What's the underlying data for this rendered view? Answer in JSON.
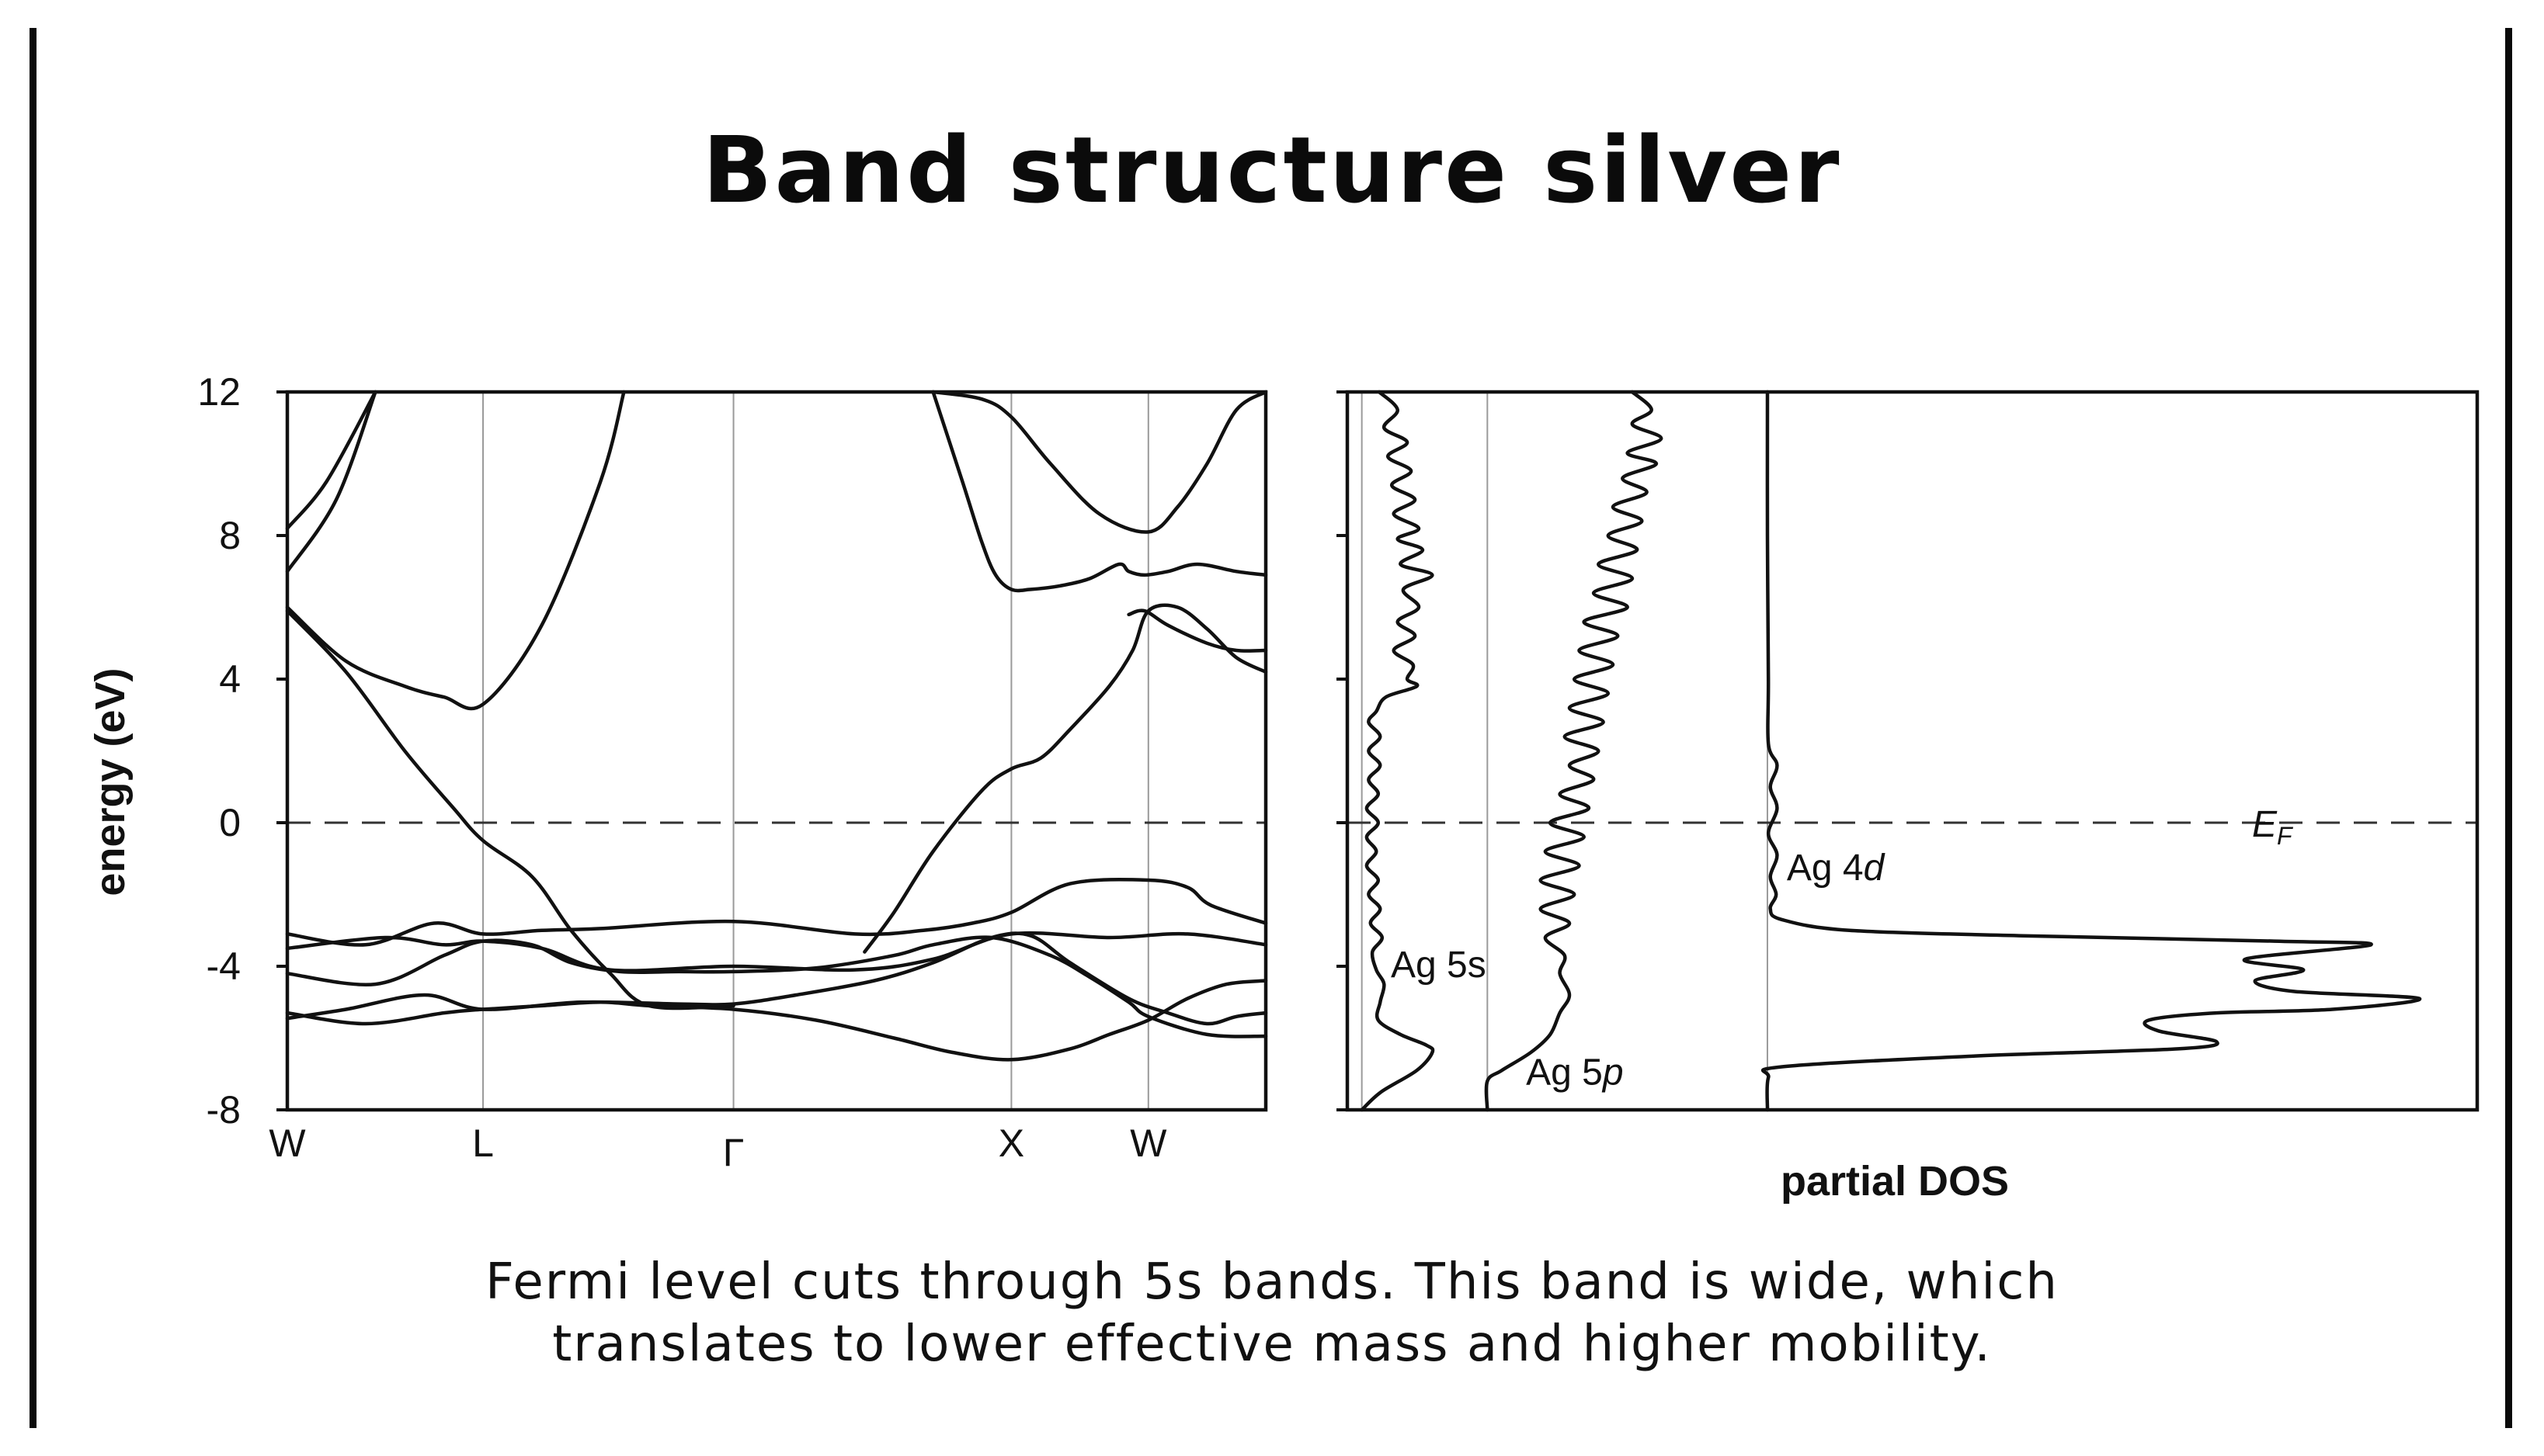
{
  "slide": {
    "title": "Band structure silver",
    "caption_line1": "Fermi level cuts through 5s bands.  This band is wide, which",
    "caption_line2": "translates to lower effective mass and higher mobility."
  },
  "chart_data": [
    {
      "type": "line",
      "ylabel": "energy (eV)",
      "ylim": [
        -8,
        12
      ],
      "yticks": [
        -8,
        -4,
        0,
        4,
        8,
        12
      ],
      "kpoints": [
        "W",
        "L",
        "Γ",
        "X",
        "W"
      ],
      "kpoint_positions": [
        0,
        1,
        2.28,
        3.7,
        4.4
      ],
      "xlim": [
        0,
        5
      ],
      "fermi_level": 0,
      "grid": "vertical lines at k-points",
      "series": [
        {
          "x": [
            0,
            0.2,
            0.45
          ],
          "values": [
            8.2,
            9.5,
            12
          ]
        },
        {
          "x": [
            0,
            0.25,
            0.45
          ],
          "values": [
            7.0,
            9.0,
            12
          ]
        },
        {
          "x": [
            0,
            0.3,
            0.6,
            0.8,
            1.0,
            1.3,
            1.6,
            1.72
          ],
          "values": [
            6.0,
            4.5,
            3.8,
            3.5,
            3.3,
            5.5,
            9.5,
            12
          ]
        },
        {
          "x": [
            0,
            0.3,
            0.6,
            0.85,
            1.0,
            1.25,
            1.45,
            1.65,
            1.85,
            2.28
          ],
          "values": [
            5.9,
            4.2,
            2.0,
            0.4,
            -0.5,
            -1.5,
            -3.0,
            -4.2,
            -5.1,
            -5.1
          ]
        },
        {
          "x": [
            0,
            0.4,
            0.75,
            1.0,
            1.3,
            1.6,
            2.28,
            2.9,
            3.25,
            3.5,
            3.7,
            4.0,
            4.4,
            4.6,
            4.72,
            5.0
          ],
          "values": [
            -3.1,
            -3.4,
            -2.8,
            -3.1,
            -3.0,
            -2.95,
            -2.75,
            -3.1,
            -3.0,
            -2.8,
            -2.5,
            -1.7,
            -1.6,
            -1.8,
            -2.3,
            -2.8
          ]
        },
        {
          "x": [
            0,
            0.5,
            0.8,
            1.0,
            1.3,
            1.65,
            2.28,
            2.9,
            3.3,
            3.7,
            4.2,
            4.6,
            5.0
          ],
          "values": [
            -3.5,
            -3.2,
            -3.4,
            -3.3,
            -3.5,
            -4.1,
            -4.0,
            -4.1,
            -3.8,
            -3.1,
            -3.2,
            -3.1,
            -3.4
          ]
        },
        {
          "x": [
            0,
            0.45,
            0.8,
            1.0,
            1.25,
            1.45,
            1.7,
            2.0,
            2.28,
            2.7,
            3.1,
            3.3,
            3.6,
            3.9,
            4.1,
            4.3,
            4.4,
            4.7,
            5.0
          ],
          "values": [
            -4.2,
            -4.5,
            -3.7,
            -3.3,
            -3.4,
            -3.9,
            -4.15,
            -4.15,
            -4.15,
            -4.05,
            -3.7,
            -3.4,
            -3.2,
            -3.7,
            -4.3,
            -5.0,
            -5.4,
            -5.9,
            -5.95
          ]
        },
        {
          "x": [
            0,
            0.4,
            0.8,
            1.0,
            1.3,
            1.6,
            1.85,
            2.28,
            2.7,
            3.1,
            3.4,
            3.7,
            4.0,
            4.2,
            4.4,
            4.6,
            4.8,
            5.0
          ],
          "values": [
            -5.3,
            -5.6,
            -5.3,
            -5.2,
            -5.1,
            -5.0,
            -5.1,
            -5.2,
            -5.5,
            -6.0,
            -6.4,
            -6.6,
            -6.3,
            -5.9,
            -5.5,
            -4.9,
            -4.5,
            -4.4
          ]
        },
        {
          "x": [
            0,
            0.3,
            0.7,
            1.0,
            1.5,
            2.0,
            2.28,
            2.6,
            3.0,
            3.3,
            3.6,
            3.8,
            4.0,
            4.3,
            4.5,
            4.7,
            4.85,
            5.0
          ],
          "values": [
            -5.45,
            -5.2,
            -4.8,
            -5.2,
            -5.0,
            -5.05,
            -5.05,
            -4.8,
            -4.4,
            -3.9,
            -3.2,
            -3.15,
            -3.9,
            -4.9,
            -5.3,
            -5.6,
            -5.4,
            -5.3
          ]
        },
        {
          "x": [
            3.3,
            3.45,
            3.55,
            3.62,
            3.7,
            3.8,
            3.95,
            4.1,
            4.25,
            4.3,
            4.38,
            4.5,
            4.65,
            4.85,
            5.0
          ],
          "values": [
            12,
            9.5,
            7.8,
            6.9,
            6.5,
            6.5,
            6.6,
            6.8,
            7.2,
            7.0,
            6.9,
            7.0,
            7.2,
            7.0,
            6.9
          ]
        },
        {
          "x": [
            3.3,
            3.55,
            3.7,
            3.9,
            4.15,
            4.4,
            4.55,
            4.7,
            4.85,
            5.0
          ],
          "values": [
            12,
            11.8,
            11.3,
            10.0,
            8.6,
            8.1,
            8.8,
            10.0,
            11.5,
            12
          ]
        },
        {
          "x": [
            2.95,
            3.1,
            3.3,
            3.55,
            3.7,
            3.85,
            4.0,
            4.2,
            4.32,
            4.4,
            4.55,
            4.7,
            4.85,
            5.0
          ],
          "values": [
            -3.6,
            -2.5,
            -0.8,
            0.9,
            1.5,
            1.8,
            2.6,
            3.8,
            4.8,
            5.9,
            6.0,
            5.4,
            4.6,
            4.2
          ]
        },
        {
          "x": [
            4.3,
            4.38,
            4.5,
            4.7,
            4.85,
            5.0
          ],
          "values": [
            5.8,
            5.9,
            5.5,
            5.0,
            4.8,
            4.8
          ]
        }
      ]
    },
    {
      "type": "line",
      "xlabel": "partial DOS",
      "ylim": [
        -8,
        12
      ],
      "fermi_label": "EF",
      "series": [
        {
          "name": "Ag 5s",
          "values": [
            [
              0.33,
              12
            ],
            [
              0.52,
              11.5
            ],
            [
              0.38,
              11.0
            ],
            [
              0.62,
              10.6
            ],
            [
              0.42,
              10.2
            ],
            [
              0.66,
              9.8
            ],
            [
              0.46,
              9.4
            ],
            [
              0.7,
              9.0
            ],
            [
              0.48,
              8.6
            ],
            [
              0.74,
              8.2
            ],
            [
              0.52,
              7.9
            ],
            [
              0.78,
              7.6
            ],
            [
              0.55,
              7.2
            ],
            [
              0.88,
              6.9
            ],
            [
              0.58,
              6.5
            ],
            [
              0.74,
              6.0
            ],
            [
              0.52,
              5.6
            ],
            [
              0.7,
              5.2
            ],
            [
              0.48,
              4.8
            ],
            [
              0.68,
              4.4
            ],
            [
              0.62,
              4.0
            ],
            [
              0.72,
              3.8
            ],
            [
              0.4,
              3.5
            ],
            [
              0.3,
              3.1
            ],
            [
              0.22,
              2.8
            ],
            [
              0.34,
              2.4
            ],
            [
              0.22,
              2.0
            ],
            [
              0.34,
              1.6
            ],
            [
              0.22,
              1.2
            ],
            [
              0.32,
              0.8
            ],
            [
              0.2,
              0.4
            ],
            [
              0.32,
              0.0
            ],
            [
              0.2,
              -0.4
            ],
            [
              0.3,
              -0.8
            ],
            [
              0.2,
              -1.2
            ],
            [
              0.32,
              -1.6
            ],
            [
              0.22,
              -2.0
            ],
            [
              0.34,
              -2.4
            ],
            [
              0.24,
              -2.8
            ],
            [
              0.36,
              -3.2
            ],
            [
              0.26,
              -3.6
            ],
            [
              0.3,
              -4.1
            ],
            [
              0.38,
              -4.5
            ],
            [
              0.34,
              -5.0
            ],
            [
              0.32,
              -5.5
            ],
            [
              0.55,
              -5.9
            ],
            [
              0.82,
              -6.2
            ],
            [
              0.88,
              -6.4
            ],
            [
              0.72,
              -6.9
            ],
            [
              0.35,
              -7.5
            ],
            [
              0.15,
              -8
            ]
          ]
        },
        {
          "name": "Ag 5p",
          "values": [
            [
              2.95,
              12
            ],
            [
              3.15,
              11.5
            ],
            [
              2.95,
              11.1
            ],
            [
              3.25,
              10.7
            ],
            [
              2.9,
              10.3
            ],
            [
              3.2,
              10.0
            ],
            [
              2.85,
              9.6
            ],
            [
              3.1,
              9.2
            ],
            [
              2.75,
              8.8
            ],
            [
              3.05,
              8.4
            ],
            [
              2.7,
              8.0
            ],
            [
              3.0,
              7.6
            ],
            [
              2.6,
              7.2
            ],
            [
              2.95,
              6.8
            ],
            [
              2.55,
              6.4
            ],
            [
              2.9,
              6.0
            ],
            [
              2.45,
              5.6
            ],
            [
              2.8,
              5.2
            ],
            [
              2.4,
              4.8
            ],
            [
              2.75,
              4.4
            ],
            [
              2.35,
              4.0
            ],
            [
              2.7,
              3.6
            ],
            [
              2.3,
              3.2
            ],
            [
              2.65,
              2.8
            ],
            [
              2.25,
              2.4
            ],
            [
              2.6,
              2.0
            ],
            [
              2.3,
              1.6
            ],
            [
              2.55,
              1.2
            ],
            [
              2.2,
              0.8
            ],
            [
              2.5,
              0.4
            ],
            [
              2.1,
              0.0
            ],
            [
              2.45,
              -0.4
            ],
            [
              2.05,
              -0.8
            ],
            [
              2.4,
              -1.2
            ],
            [
              2.0,
              -1.6
            ],
            [
              2.35,
              -2.0
            ],
            [
              2.0,
              -2.4
            ],
            [
              2.3,
              -2.8
            ],
            [
              2.05,
              -3.2
            ],
            [
              2.25,
              -3.7
            ],
            [
              2.2,
              -4.2
            ],
            [
              2.3,
              -4.8
            ],
            [
              2.2,
              -5.3
            ],
            [
              2.1,
              -5.9
            ],
            [
              1.9,
              -6.4
            ],
            [
              1.6,
              -6.9
            ],
            [
              1.45,
              -7.2
            ],
            [
              1.45,
              -8
            ]
          ]
        },
        {
          "name": "Ag 4d",
          "values": [
            [
              4.35,
              12
            ],
            [
              4.35,
              8.0
            ],
            [
              4.36,
              4.0
            ],
            [
              4.36,
              2.2
            ],
            [
              4.45,
              1.6
            ],
            [
              4.38,
              1.0
            ],
            [
              4.45,
              0.4
            ],
            [
              4.36,
              -0.3
            ],
            [
              4.45,
              -0.9
            ],
            [
              4.38,
              -1.5
            ],
            [
              4.44,
              -2.0
            ],
            [
              4.38,
              -2.4
            ],
            [
              4.5,
              -2.7
            ],
            [
              5.2,
              -3.0
            ],
            [
              7.0,
              -3.15
            ],
            [
              9.6,
              -3.3
            ],
            [
              10.6,
              -3.4
            ],
            [
              9.3,
              -3.8
            ],
            [
              9.9,
              -4.1
            ],
            [
              9.4,
              -4.4
            ],
            [
              9.8,
              -4.7
            ],
            [
              11.1,
              -4.9
            ],
            [
              10.2,
              -5.2
            ],
            [
              9.0,
              -5.3
            ],
            [
              8.3,
              -5.5
            ],
            [
              8.4,
              -5.8
            ],
            [
              9.0,
              -6.1
            ],
            [
              8.6,
              -6.3
            ],
            [
              6.5,
              -6.5
            ],
            [
              4.5,
              -6.8
            ],
            [
              4.36,
              -7.1
            ],
            [
              4.35,
              -8
            ]
          ]
        }
      ],
      "xlim": [
        0,
        11.7
      ],
      "dividers": [
        0.15,
        1.45,
        4.35
      ]
    }
  ]
}
